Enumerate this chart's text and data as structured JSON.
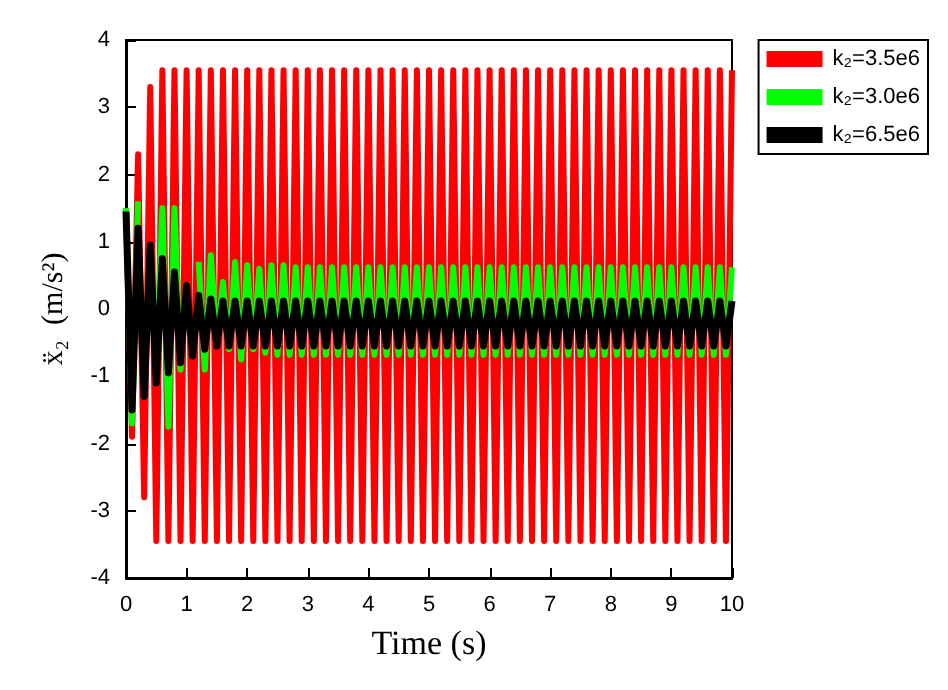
{
  "chart_data": {
    "type": "line",
    "xlabel": "Time (s)",
    "ylabel": "ẍ₂  (m/s²)",
    "x": [
      0,
      0.1,
      0.2,
      0.3,
      0.4,
      0.5,
      0.6,
      0.7,
      0.8,
      0.9,
      1,
      1.1,
      1.2,
      1.3,
      1.4,
      1.5,
      1.6,
      1.7,
      1.8,
      1.9,
      2,
      2.1,
      2.2,
      2.3,
      2.4,
      2.5,
      2.6,
      2.7,
      2.8,
      2.9,
      3,
      3.1,
      3.2,
      3.3,
      3.4,
      3.5,
      3.6,
      3.7,
      3.8,
      3.9,
      4,
      4.1,
      4.2,
      4.3,
      4.4,
      4.5,
      4.6,
      4.7,
      4.8,
      4.9,
      5,
      5.1,
      5.2,
      5.3,
      5.4,
      5.5,
      5.6,
      5.7,
      5.8,
      5.9,
      6,
      6.1,
      6.2,
      6.3,
      6.4,
      6.5,
      6.6,
      6.7,
      6.8,
      6.9,
      7,
      7.1,
      7.2,
      7.3,
      7.4,
      7.5,
      7.6,
      7.7,
      7.8,
      7.9,
      8,
      8.1,
      8.2,
      8.3,
      8.4,
      8.5,
      8.6,
      8.7,
      8.8,
      8.9,
      9,
      9.1,
      9.2,
      9.3,
      9.4,
      9.5,
      9.6,
      9.7,
      9.8,
      9.9,
      10
    ],
    "series": [
      {
        "name": "k₂=3.5e6",
        "color": "#ff0000",
        "values": [
          1.5,
          -1.9,
          2.3,
          -2.8,
          3.3,
          -3.45,
          3.55,
          -3.45,
          3.55,
          -3.45,
          3.55,
          -3.45,
          3.55,
          -3.45,
          3.55,
          -3.45,
          3.55,
          -3.45,
          3.55,
          -3.45,
          3.55,
          -3.45,
          3.55,
          -3.45,
          3.55,
          -3.45,
          3.55,
          -3.45,
          3.55,
          -3.45,
          3.55,
          -3.45,
          3.55,
          -3.45,
          3.55,
          -3.45,
          3.55,
          -3.45,
          3.55,
          -3.45,
          3.55,
          -3.45,
          3.55,
          -3.45,
          3.55,
          -3.45,
          3.55,
          -3.45,
          3.55,
          -3.45,
          3.55,
          -3.45,
          3.55,
          -3.45,
          3.55,
          -3.45,
          3.55,
          -3.45,
          3.55,
          -3.45,
          3.55,
          -3.45,
          3.55,
          -3.45,
          3.55,
          -3.45,
          3.55,
          -3.45,
          3.55,
          -3.45,
          3.55,
          -3.45,
          3.55,
          -3.45,
          3.55,
          -3.45,
          3.55,
          -3.45,
          3.55,
          -3.45,
          3.55,
          -3.45,
          3.55,
          -3.45,
          3.55,
          -3.45,
          3.55,
          -3.45,
          3.55,
          -3.45,
          3.55,
          -3.45,
          3.55,
          -3.45,
          3.55,
          -3.45,
          3.55,
          -3.45,
          3.55,
          -3.45,
          3.55
        ]
      },
      {
        "name": "k₂=3.0e6",
        "color": "#00ff00",
        "values": [
          1.5,
          -1.7,
          1.6,
          null,
          0.4,
          -0.9,
          1.5,
          -1.75,
          1.5,
          -0.9,
          0.4,
          null,
          0.7,
          -0.9,
          0.8,
          -0.5,
          0.4,
          -0.6,
          0.7,
          -0.75,
          0.65,
          -0.6,
          0.6,
          -0.65,
          0.65,
          -0.68,
          0.65,
          -0.68,
          0.62,
          -0.68,
          0.62,
          -0.68,
          0.62,
          -0.68,
          0.62,
          -0.68,
          0.62,
          -0.68,
          0.62,
          -0.68,
          0.62,
          -0.68,
          0.62,
          -0.68,
          0.62,
          -0.68,
          0.62,
          -0.68,
          0.62,
          -0.68,
          0.62,
          -0.68,
          0.62,
          -0.68,
          0.62,
          -0.68,
          0.62,
          -0.68,
          0.62,
          -0.68,
          0.62,
          -0.68,
          0.62,
          -0.68,
          0.62,
          -0.68,
          0.62,
          -0.68,
          0.62,
          -0.68,
          0.62,
          -0.68,
          0.62,
          -0.68,
          0.62,
          -0.68,
          0.62,
          -0.68,
          0.62,
          -0.68,
          0.62,
          -0.68,
          0.62,
          -0.68,
          0.62,
          -0.68,
          0.62,
          -0.68,
          0.62,
          -0.68,
          0.62,
          -0.68,
          0.62,
          -0.68,
          0.62,
          -0.68,
          0.62,
          -0.68,
          0.62,
          -0.68,
          0.62
        ]
      },
      {
        "name": "k₂=6.5e6",
        "color": "#000000",
        "values": [
          1.45,
          -1.5,
          1.2,
          -1.3,
          0.95,
          -1.1,
          0.75,
          -0.95,
          0.55,
          -0.8,
          0.35,
          -0.7,
          0.2,
          -0.6,
          0.15,
          -0.55,
          0.12,
          -0.55,
          0.12,
          -0.55,
          0.12,
          -0.55,
          0.12,
          -0.55,
          0.12,
          -0.55,
          0.12,
          -0.55,
          0.12,
          -0.55,
          0.12,
          -0.55,
          0.12,
          -0.55,
          0.12,
          -0.55,
          0.12,
          -0.55,
          0.12,
          -0.55,
          0.12,
          -0.55,
          0.12,
          -0.55,
          0.12,
          -0.55,
          0.12,
          -0.55,
          0.12,
          -0.55,
          0.12,
          -0.55,
          0.12,
          -0.55,
          0.12,
          -0.55,
          0.12,
          -0.55,
          0.12,
          -0.55,
          0.12,
          -0.55,
          0.12,
          -0.55,
          0.12,
          -0.55,
          0.12,
          -0.55,
          0.12,
          -0.55,
          0.12,
          -0.55,
          0.12,
          -0.55,
          0.12,
          -0.55,
          0.12,
          -0.55,
          0.12,
          -0.55,
          0.12,
          -0.55,
          0.12,
          -0.55,
          0.12,
          -0.55,
          0.12,
          -0.55,
          0.12,
          -0.55,
          0.12,
          -0.55,
          0.12,
          -0.55,
          0.12,
          -0.55,
          0.12,
          -0.55,
          0.12,
          -0.55,
          0.12
        ]
      }
    ],
    "xlim": [
      0,
      10
    ],
    "xticks": [
      0,
      1,
      2,
      3,
      4,
      5,
      6,
      7,
      8,
      9,
      10
    ],
    "ylim": [
      -4,
      4
    ],
    "yticks": [
      -4,
      -3,
      -2,
      -1,
      0,
      1,
      2,
      3,
      4
    ],
    "grid": false,
    "legend": "top right",
    "marker": "none",
    "line_style": "solid"
  }
}
